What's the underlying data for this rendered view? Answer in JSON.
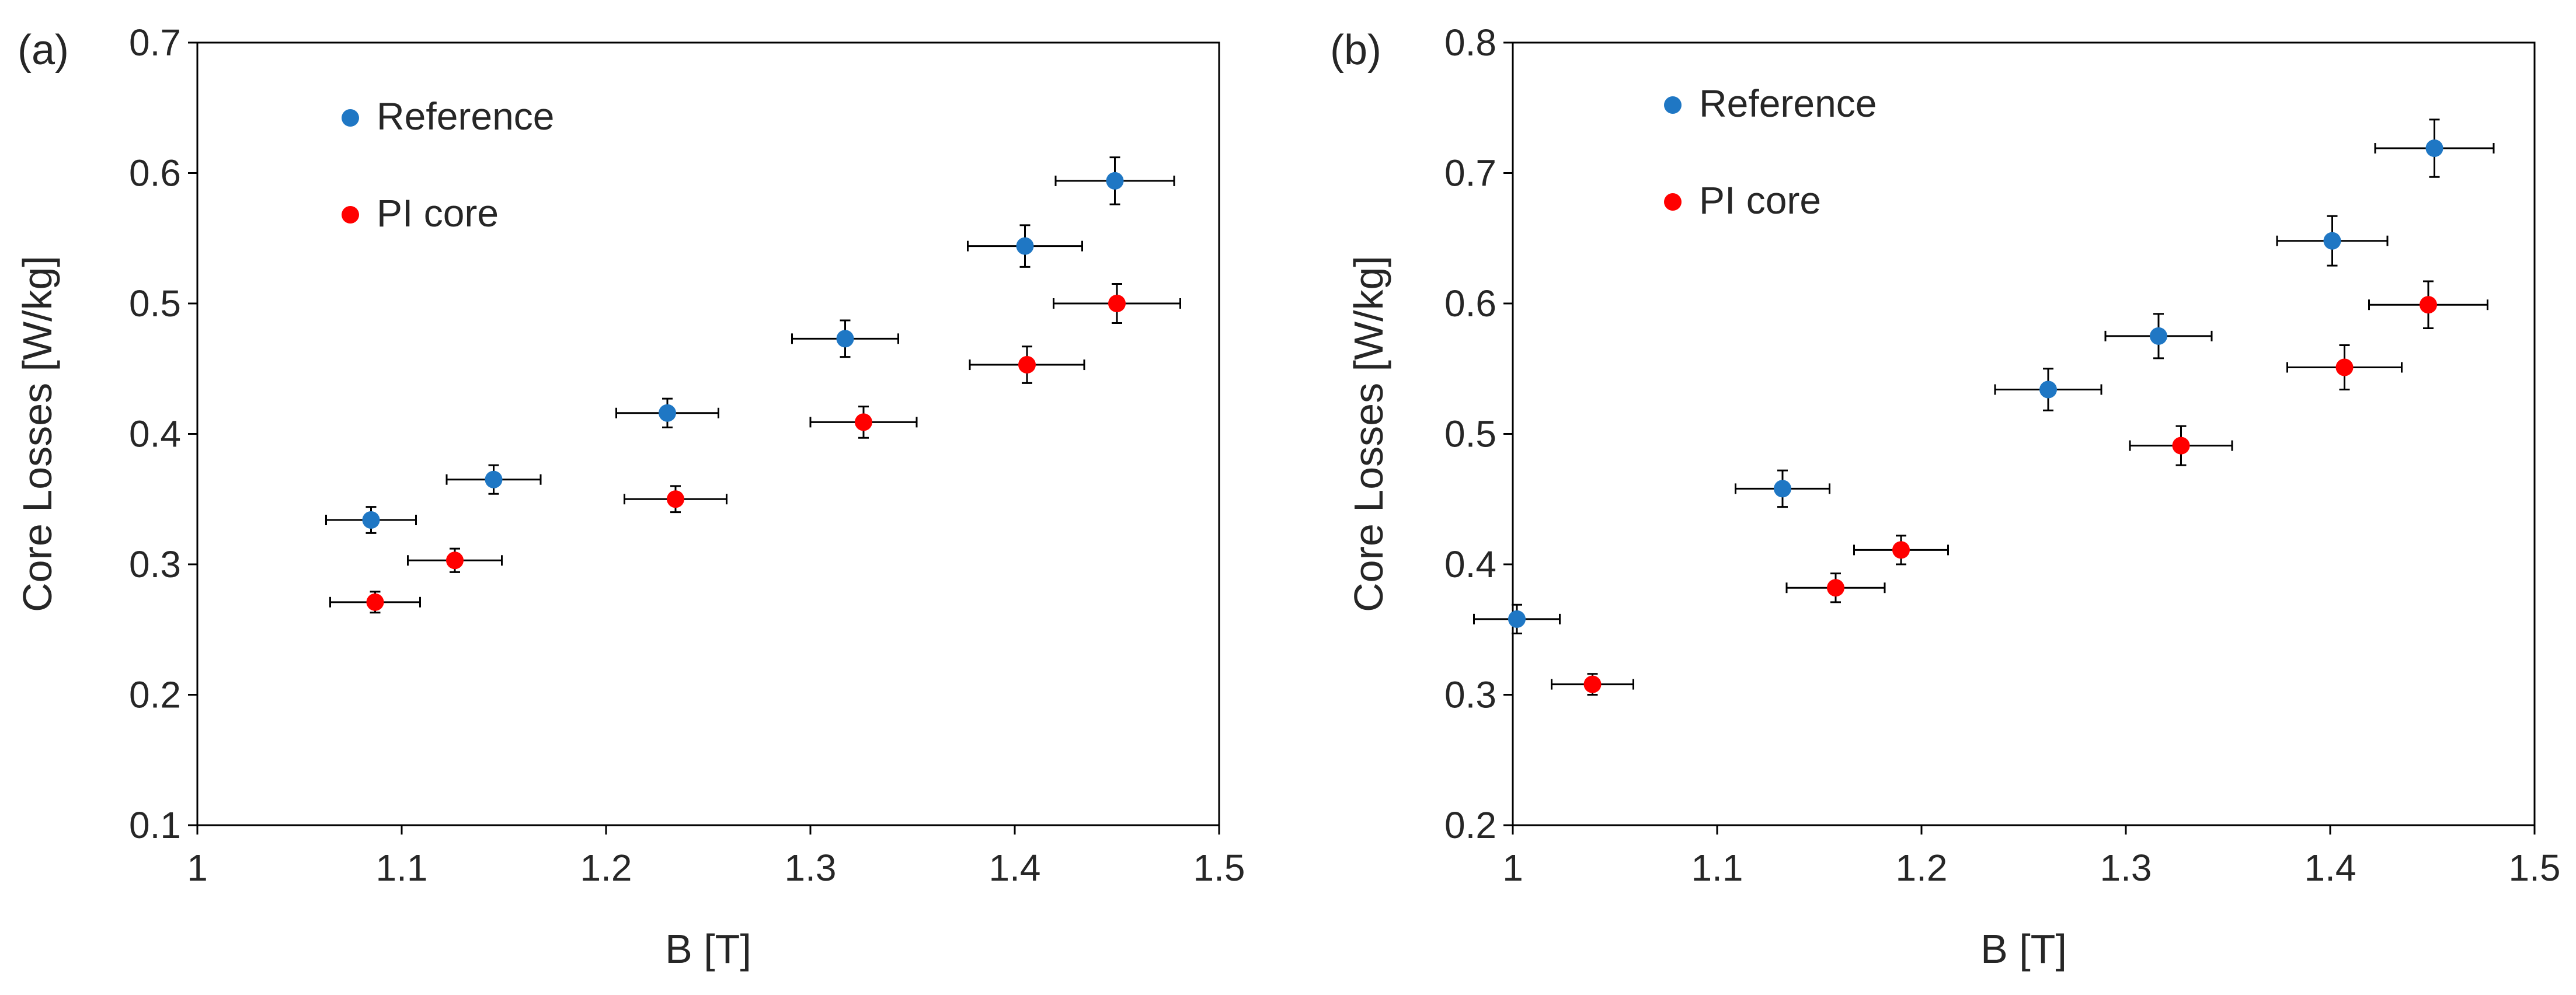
{
  "chart_data": [
    {
      "type": "scatter",
      "panel_label": "(a)",
      "xlabel": "B [T]",
      "ylabel": "Core Losses [W/kg]",
      "xlim": [
        1,
        1.5
      ],
      "ylim": [
        0.1,
        0.7
      ],
      "xticks": [
        "1",
        "1.1",
        "1.2",
        "1.3",
        "1.4",
        "1.5"
      ],
      "yticks": [
        "0.1",
        "0.2",
        "0.3",
        "0.4",
        "0.5",
        "0.6",
        "0.7"
      ],
      "grid": false,
      "legend_placement": "top-left",
      "series": [
        {
          "name": "Reference",
          "color": "#1f77c4",
          "points": [
            {
              "x": 1.085,
              "y": 0.334,
              "xerr": 0.022,
              "yerr": 0.01
            },
            {
              "x": 1.145,
              "y": 0.365,
              "xerr": 0.023,
              "yerr": 0.011
            },
            {
              "x": 1.23,
              "y": 0.416,
              "xerr": 0.025,
              "yerr": 0.011
            },
            {
              "x": 1.317,
              "y": 0.473,
              "xerr": 0.026,
              "yerr": 0.014
            },
            {
              "x": 1.405,
              "y": 0.544,
              "xerr": 0.028,
              "yerr": 0.016
            },
            {
              "x": 1.449,
              "y": 0.594,
              "xerr": 0.029,
              "yerr": 0.018
            }
          ]
        },
        {
          "name": "PI core",
          "color": "#ff0000",
          "points": [
            {
              "x": 1.087,
              "y": 0.271,
              "xerr": 0.022,
              "yerr": 0.008
            },
            {
              "x": 1.126,
              "y": 0.303,
              "xerr": 0.023,
              "yerr": 0.009
            },
            {
              "x": 1.234,
              "y": 0.35,
              "xerr": 0.025,
              "yerr": 0.01
            },
            {
              "x": 1.326,
              "y": 0.409,
              "xerr": 0.026,
              "yerr": 0.012
            },
            {
              "x": 1.406,
              "y": 0.453,
              "xerr": 0.028,
              "yerr": 0.014
            },
            {
              "x": 1.45,
              "y": 0.5,
              "xerr": 0.031,
              "yerr": 0.015
            }
          ]
        }
      ]
    },
    {
      "type": "scatter",
      "panel_label": "(b)",
      "xlabel": "B [T]",
      "ylabel": "Core Losses [W/kg]",
      "xlim": [
        1,
        1.5
      ],
      "ylim": [
        0.2,
        0.8
      ],
      "xticks": [
        "1",
        "1.1",
        "1.2",
        "1.3",
        "1.4",
        "1.5"
      ],
      "yticks": [
        "0.2",
        "0.3",
        "0.4",
        "0.5",
        "0.6",
        "0.7",
        "0.8"
      ],
      "grid": false,
      "legend_placement": "top-left",
      "series": [
        {
          "name": "Reference",
          "color": "#1f77c4",
          "points": [
            {
              "x": 1.002,
              "y": 0.358,
              "xerr": 0.021,
              "yerr": 0.011
            },
            {
              "x": 1.132,
              "y": 0.458,
              "xerr": 0.023,
              "yerr": 0.014
            },
            {
              "x": 1.262,
              "y": 0.534,
              "xerr": 0.026,
              "yerr": 0.016
            },
            {
              "x": 1.316,
              "y": 0.575,
              "xerr": 0.026,
              "yerr": 0.017
            },
            {
              "x": 1.401,
              "y": 0.648,
              "xerr": 0.027,
              "yerr": 0.019
            },
            {
              "x": 1.451,
              "y": 0.719,
              "xerr": 0.029,
              "yerr": 0.022
            }
          ]
        },
        {
          "name": "PI core",
          "color": "#ff0000",
          "points": [
            {
              "x": 1.039,
              "y": 0.308,
              "xerr": 0.02,
              "yerr": 0.008
            },
            {
              "x": 1.158,
              "y": 0.382,
              "xerr": 0.024,
              "yerr": 0.011
            },
            {
              "x": 1.19,
              "y": 0.411,
              "xerr": 0.023,
              "yerr": 0.011
            },
            {
              "x": 1.327,
              "y": 0.491,
              "xerr": 0.025,
              "yerr": 0.015
            },
            {
              "x": 1.407,
              "y": 0.551,
              "xerr": 0.028,
              "yerr": 0.017
            },
            {
              "x": 1.448,
              "y": 0.599,
              "xerr": 0.029,
              "yerr": 0.018
            }
          ]
        }
      ]
    }
  ]
}
